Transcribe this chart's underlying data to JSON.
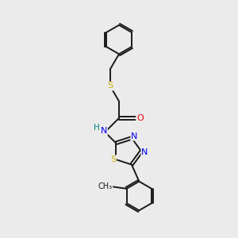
{
  "background_color": "#ebebeb",
  "bond_color": "#1a1a1a",
  "figsize": [
    3.0,
    3.0
  ],
  "dpi": 100,
  "atom_colors": {
    "S": "#c8b400",
    "N": "#0000ee",
    "O": "#ee0000",
    "H": "#008080",
    "C": "#1a1a1a"
  },
  "lw": 1.4,
  "fontsize": 7.5
}
